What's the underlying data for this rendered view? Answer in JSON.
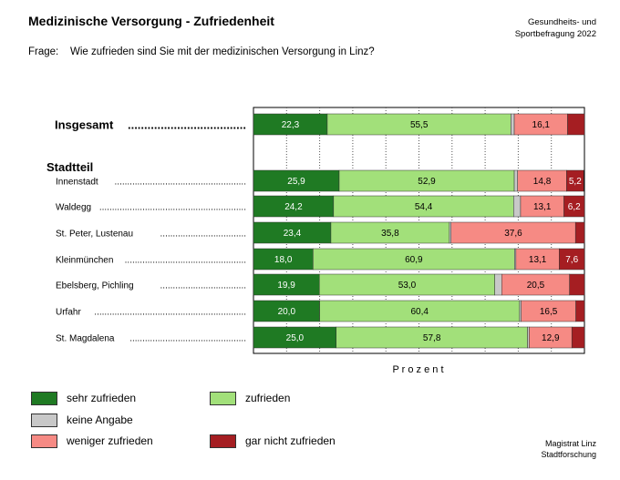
{
  "header": {
    "title": "Medizinische Versorgung - Zufriedenheit",
    "source_line1": "Gesundheits- und",
    "source_line2": "Sportbefragung 2022",
    "question_label": "Frage:",
    "question_text": "Wie zufrieden sind Sie mit der medizinischen Versorgung in Linz?"
  },
  "footer": {
    "line1": "Magistrat Linz",
    "line2": "Stadtforschung"
  },
  "colors": {
    "sehr_zufrieden": "#1f7a23",
    "zufrieden": "#a2e07a",
    "keine_angabe": "#c8c8c8",
    "weniger_zufrieden": "#f68a84",
    "gar_nicht_zufrieden": "#a51e22"
  },
  "chart_data": {
    "type": "bar",
    "orientation": "horizontal",
    "stacked": true,
    "x_axis_label": "P r o z e n t",
    "xlim": [
      0,
      100
    ],
    "grid": true,
    "group_heading": "Stadtteil",
    "legend_position": "bottom",
    "categories": [
      "Insgesamt",
      "Innenstadt",
      "Waldegg",
      "St. Peter, Lustenau",
      "Kleinmünchen",
      "Ebelsberg, Pichling",
      "Urfahr",
      "St. Magdalena"
    ],
    "series": [
      {
        "name": "sehr zufrieden",
        "values": [
          22.3,
          25.9,
          24.2,
          23.4,
          18.0,
          19.9,
          20.0,
          25.0
        ],
        "labels": [
          "22,3",
          "25,9",
          "24,2",
          "23,4",
          "18,0",
          "19,9",
          "20,0",
          "25,0"
        ]
      },
      {
        "name": "zufrieden",
        "values": [
          55.5,
          52.9,
          54.4,
          35.8,
          60.9,
          53.0,
          60.4,
          57.8
        ],
        "labels": [
          "55,5",
          "52,9",
          "54,4",
          "35,8",
          "60,9",
          "53,0",
          "60,4",
          "57,8"
        ]
      },
      {
        "name": "keine Angabe",
        "values": [
          1.0,
          1.0,
          2.1,
          0.5,
          0.4,
          2.1,
          0.5,
          0.5
        ],
        "labels": [
          "",
          "",
          "",
          "",
          "",
          "",
          "",
          ""
        ]
      },
      {
        "name": "weniger zufrieden",
        "values": [
          16.1,
          14.8,
          13.1,
          37.6,
          13.1,
          20.5,
          16.5,
          12.9
        ],
        "labels": [
          "16,1",
          "14,8",
          "13,1",
          "37,6",
          "13,1",
          "20,5",
          "16,5",
          "12,9"
        ]
      },
      {
        "name": "gar nicht zufrieden",
        "values": [
          5.1,
          5.2,
          6.2,
          2.7,
          7.6,
          4.5,
          2.6,
          3.8
        ],
        "labels": [
          "",
          "5,2",
          "6,2",
          "",
          "7,6",
          "",
          "",
          ""
        ]
      }
    ],
    "legend": [
      "sehr zufrieden",
      "zufrieden",
      "keine Angabe",
      "weniger zufrieden",
      "gar nicht zufrieden"
    ]
  }
}
